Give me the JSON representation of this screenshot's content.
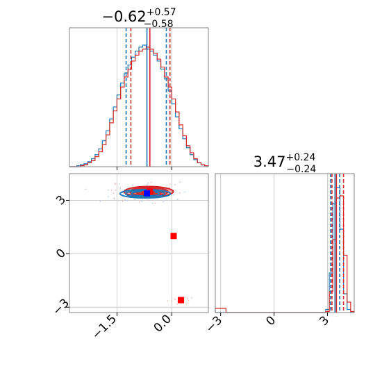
{
  "figure": {
    "title_left": {
      "base": "−0.62",
      "sup": "+0.57",
      "sub": "−0.58"
    },
    "title_right": {
      "base": "3.47",
      "sup": "+0.24",
      "sub": "−0.24"
    }
  },
  "colors": {
    "blue": "#1f77b4",
    "red": "#d62728",
    "marker_red": "#ff0000",
    "marker_blue": "#0000ff",
    "grid": "#cccccc",
    "frame": "#808080"
  },
  "chart_data": [
    {
      "type": "bar",
      "panel": "marginal-param-1",
      "xlim": [
        -2.8,
        1.0
      ],
      "bin_edges": [
        -2.8,
        -2.7,
        -2.6,
        -2.5,
        -2.4,
        -2.3,
        -2.2,
        -2.1,
        -2.0,
        -1.9,
        -1.8,
        -1.7,
        -1.6,
        -1.5,
        -1.4,
        -1.3,
        -1.2,
        -1.1,
        -1.0,
        -0.9,
        -0.8,
        -0.7,
        -0.6,
        -0.5,
        -0.4,
        -0.3,
        -0.2,
        -0.1,
        0.0,
        0.1,
        0.2,
        0.3,
        0.4,
        0.5,
        0.6,
        0.7,
        0.8,
        0.9,
        1.0
      ],
      "series": [
        {
          "values": [
            0,
            0,
            1,
            2,
            3,
            5,
            8,
            12,
            18,
            26,
            36,
            48,
            60,
            72,
            84,
            94,
            102,
            110,
            116,
            120,
            122,
            118,
            116,
            112,
            106,
            98,
            88,
            76,
            63,
            50,
            38,
            28,
            19,
            12,
            7,
            4,
            2,
            1
          ]
        },
        {
          "values": [
            0,
            0,
            0,
            1,
            2,
            4,
            6,
            10,
            15,
            22,
            32,
            44,
            56,
            68,
            80,
            90,
            98,
            106,
            112,
            116,
            118,
            120,
            118,
            114,
            108,
            100,
            90,
            80,
            68,
            55,
            42,
            31,
            21,
            14,
            8,
            4,
            2,
            1
          ]
        }
      ],
      "quantiles": {
        "blue": [
          -1.25,
          -0.68,
          -0.15
        ],
        "red": [
          -1.12,
          -0.6,
          -0.05
        ]
      }
    },
    {
      "type": "scatter",
      "panel": "joint-param-1-vs-param-2",
      "xlim": [
        -2.8,
        1.0
      ],
      "ylim": [
        -3.3,
        4.5
      ],
      "x_ticks": [
        "−1.5",
        "0.0"
      ],
      "x_tick_values": [
        -1.5,
        0.0
      ],
      "y_ticks": [
        "3",
        "0",
        "−3"
      ],
      "y_tick_values": [
        3,
        0,
        -3
      ],
      "markers": [
        {
          "color": "red",
          "x": -0.6,
          "y": 3.5
        },
        {
          "color": "red",
          "x": 0.05,
          "y": 1.0
        },
        {
          "color": "red",
          "x": 0.25,
          "y": -2.6
        },
        {
          "color": "blue",
          "x": -0.68,
          "y": 3.4
        }
      ],
      "contours": {
        "center": [
          -0.65,
          3.45
        ],
        "spread_x": 0.6,
        "spread_y": 0.25
      }
    },
    {
      "type": "bar",
      "panel": "marginal-param-2",
      "xlim": [
        -3.3,
        4.5
      ],
      "x_ticks": [
        "−3",
        "0",
        "3"
      ],
      "x_tick_values": [
        -3,
        0,
        3
      ],
      "bin_edges": [
        -3.3,
        -3.1,
        -2.9,
        -2.7,
        -2.5,
        -2.3,
        -2.1,
        -1.9,
        -1.7,
        -1.5,
        -1.3,
        -1.1,
        -0.9,
        -0.7,
        -0.5,
        -0.3,
        -0.1,
        0.1,
        0.3,
        0.5,
        0.7,
        0.9,
        1.1,
        1.3,
        1.5,
        1.7,
        1.9,
        2.1,
        2.3,
        2.5,
        2.7,
        2.9,
        3.1,
        3.3,
        3.5,
        3.7,
        3.9,
        4.1,
        4.3,
        4.5
      ],
      "series": [
        {
          "values": [
            0,
            0,
            0,
            0,
            0,
            0,
            0,
            0,
            0,
            0,
            0,
            0,
            0,
            0,
            0,
            0,
            0,
            0,
            0,
            0,
            0,
            0,
            0,
            0,
            0,
            0,
            0,
            0,
            0,
            0,
            0,
            3,
            38,
            105,
            120,
            80,
            18,
            3,
            0
          ]
        },
        {
          "values": [
            4,
            4,
            4,
            0,
            0,
            0,
            0,
            0,
            0,
            0,
            0,
            0,
            0,
            0,
            0,
            0,
            0,
            0,
            0,
            0,
            0,
            0,
            0,
            0,
            0,
            0,
            0,
            0,
            0,
            0,
            0,
            1,
            20,
            70,
            110,
            112,
            55,
            10,
            1
          ]
        }
      ],
      "quantiles": {
        "blue": [
          3.17,
          3.42,
          3.68
        ],
        "red": [
          3.25,
          3.5,
          3.9
        ]
      }
    }
  ]
}
